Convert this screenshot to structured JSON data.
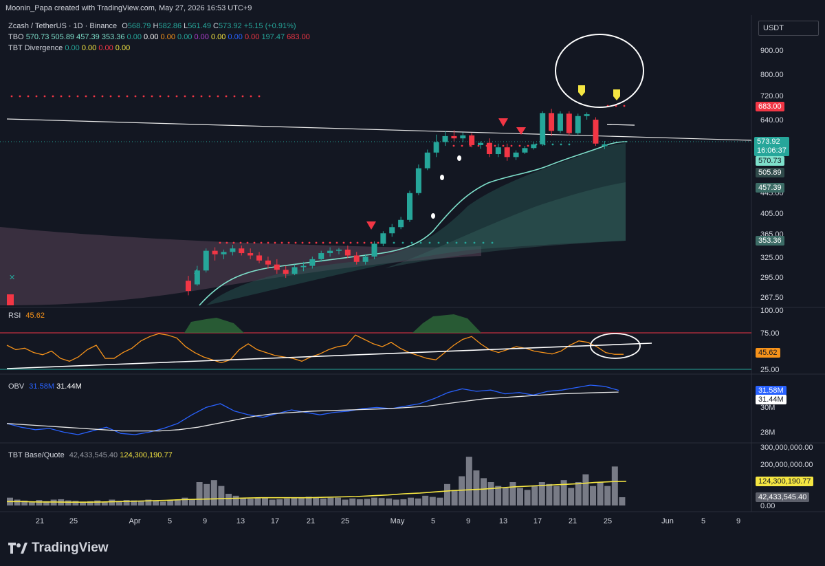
{
  "header": {
    "caption": "Moonin_Papa created with TradingView.com, May 27, 2026 16:53 UTC+9",
    "symbol": "Zcash / TetherUS · 1D · Binance",
    "o_label": "O",
    "o": "568.79",
    "h_label": "H",
    "h": "582.86",
    "l_label": "L",
    "l": "561.49",
    "c_label": "C",
    "c": "573.92",
    "change": "+5.15 (+0.91%)",
    "currency": "USDT"
  },
  "tbo_legend": {
    "name": "TBO",
    "values": [
      "570.73",
      "505.89",
      "457.39",
      "353.36",
      "0.00",
      "0.00",
      "0.00",
      "0.00",
      "0.00",
      "0.00",
      "0.00",
      "0.00",
      "197.47",
      "683.00"
    ]
  },
  "divergence_legend": {
    "name": "TBT Divergence",
    "values": [
      "0.00",
      "0.00",
      "0.00",
      "0.00"
    ]
  },
  "rsi_legend": {
    "name": "RSI",
    "value": "45.62"
  },
  "obv_legend": {
    "name": "OBV",
    "value1": "31.58M",
    "value2": "31.44M"
  },
  "vol_legend": {
    "name": "TBT Base/Quote",
    "value1": "42,433,545.40",
    "value2": "124,300,190.77"
  },
  "price_axis": [
    "900.00",
    "800.00",
    "720.00",
    "640.00",
    "445.00",
    "405.00",
    "365.00",
    "325.00",
    "295.00",
    "267.50"
  ],
  "price_labels": {
    "close": "573.92",
    "countdown": "16:06:37",
    "high_line": "683.00",
    "tbo1": "570.73",
    "tbo2": "505.89",
    "tbo3": "457.39",
    "tbo4": "353.36"
  },
  "rsi_axis": [
    "100.00",
    "75.00",
    "25.00"
  ],
  "rsi_label": "45.62",
  "obv_axis": [
    "30M",
    "28M"
  ],
  "obv_labels": {
    "obv": "31.58M",
    "ma": "31.44M"
  },
  "vol_axis": [
    "300,000,000.00",
    "200,000,000.00",
    "0.00"
  ],
  "vol_labels": {
    "ma": "124,300,190.77",
    "last": "42,433,545.40"
  },
  "time_axis": [
    "21",
    "25",
    "Apr",
    "5",
    "9",
    "13",
    "17",
    "21",
    "25",
    "May",
    "5",
    "9",
    "13",
    "17",
    "21",
    "25",
    "Jun",
    "5",
    "9"
  ],
  "brand": "TradingView",
  "colors": {
    "up": "#26a69a",
    "down": "#f23645",
    "teal": "#7ee0cb",
    "purple": "#5a4458",
    "rsi": "#f7931a",
    "obv": "#2962ff",
    "ma": "#f5e642",
    "bg": "#131722"
  },
  "chart_data": {
    "type": "candlestick",
    "title": "Zcash / TetherUS · 1D · Binance",
    "ylim": [
      267.5,
      900
    ],
    "candles": [
      {
        "o": 290,
        "h": 297,
        "l": 270,
        "c": 276
      },
      {
        "o": 285,
        "h": 312,
        "l": 283,
        "c": 305
      },
      {
        "o": 305,
        "h": 340,
        "l": 302,
        "c": 336
      },
      {
        "o": 336,
        "h": 342,
        "l": 320,
        "c": 330
      },
      {
        "o": 330,
        "h": 338,
        "l": 322,
        "c": 334
      },
      {
        "o": 334,
        "h": 346,
        "l": 328,
        "c": 340
      },
      {
        "o": 340,
        "h": 345,
        "l": 328,
        "c": 332
      },
      {
        "o": 332,
        "h": 340,
        "l": 322,
        "c": 328
      },
      {
        "o": 328,
        "h": 334,
        "l": 316,
        "c": 320
      },
      {
        "o": 320,
        "h": 326,
        "l": 308,
        "c": 314
      },
      {
        "o": 314,
        "h": 322,
        "l": 300,
        "c": 306
      },
      {
        "o": 306,
        "h": 312,
        "l": 294,
        "c": 300
      },
      {
        "o": 300,
        "h": 314,
        "l": 298,
        "c": 310
      },
      {
        "o": 310,
        "h": 318,
        "l": 304,
        "c": 312
      },
      {
        "o": 312,
        "h": 326,
        "l": 308,
        "c": 322
      },
      {
        "o": 322,
        "h": 336,
        "l": 318,
        "c": 332
      },
      {
        "o": 332,
        "h": 342,
        "l": 326,
        "c": 336
      },
      {
        "o": 336,
        "h": 341,
        "l": 330,
        "c": 338
      },
      {
        "o": 338,
        "h": 345,
        "l": 324,
        "c": 328
      },
      {
        "o": 328,
        "h": 334,
        "l": 314,
        "c": 318
      },
      {
        "o": 318,
        "h": 330,
        "l": 314,
        "c": 326
      },
      {
        "o": 326,
        "h": 352,
        "l": 322,
        "c": 348
      },
      {
        "o": 348,
        "h": 370,
        "l": 344,
        "c": 366
      },
      {
        "o": 366,
        "h": 384,
        "l": 360,
        "c": 378
      },
      {
        "o": 378,
        "h": 398,
        "l": 374,
        "c": 392
      },
      {
        "o": 392,
        "h": 450,
        "l": 388,
        "c": 444
      },
      {
        "o": 444,
        "h": 520,
        "l": 440,
        "c": 510
      },
      {
        "o": 510,
        "h": 560,
        "l": 505,
        "c": 552
      },
      {
        "o": 552,
        "h": 600,
        "l": 540,
        "c": 580
      },
      {
        "o": 580,
        "h": 610,
        "l": 570,
        "c": 596
      },
      {
        "o": 596,
        "h": 612,
        "l": 582,
        "c": 590
      },
      {
        "o": 590,
        "h": 606,
        "l": 580,
        "c": 598
      },
      {
        "o": 598,
        "h": 604,
        "l": 566,
        "c": 572
      },
      {
        "o": 572,
        "h": 582,
        "l": 562,
        "c": 578
      },
      {
        "o": 578,
        "h": 590,
        "l": 540,
        "c": 548
      },
      {
        "o": 548,
        "h": 576,
        "l": 540,
        "c": 566
      },
      {
        "o": 566,
        "h": 576,
        "l": 530,
        "c": 540
      },
      {
        "o": 540,
        "h": 558,
        "l": 532,
        "c": 552
      },
      {
        "o": 552,
        "h": 570,
        "l": 548,
        "c": 564
      },
      {
        "o": 564,
        "h": 580,
        "l": 560,
        "c": 574
      },
      {
        "o": 574,
        "h": 668,
        "l": 570,
        "c": 662
      },
      {
        "o": 662,
        "h": 676,
        "l": 596,
        "c": 610
      },
      {
        "o": 610,
        "h": 668,
        "l": 604,
        "c": 660
      },
      {
        "o": 660,
        "h": 668,
        "l": 598,
        "c": 604
      },
      {
        "o": 604,
        "h": 660,
        "l": 600,
        "c": 652
      },
      {
        "o": 652,
        "h": 664,
        "l": 640,
        "c": 658
      },
      {
        "o": 640,
        "h": 648,
        "l": 570,
        "c": 576
      },
      {
        "o": 569,
        "h": 583,
        "l": 561,
        "c": 574
      }
    ]
  }
}
